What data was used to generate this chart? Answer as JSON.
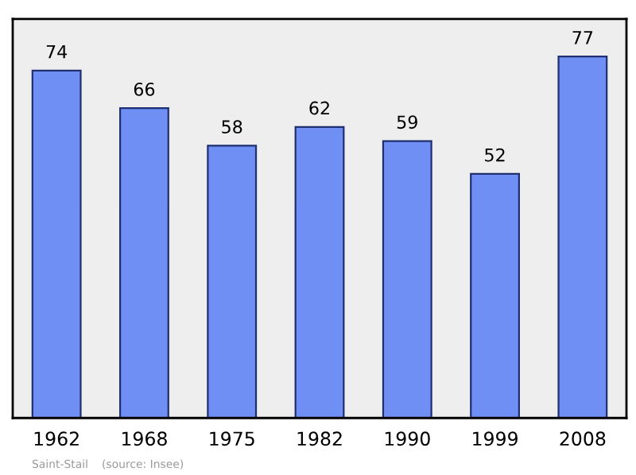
{
  "chart_data": {
    "type": "bar",
    "categories": [
      "1962",
      "1968",
      "1975",
      "1982",
      "1990",
      "1999",
      "2008"
    ],
    "values": [
      74,
      66,
      58,
      62,
      59,
      52,
      77
    ],
    "color": "#6f8ff5",
    "ylim": [
      0,
      85
    ],
    "data_labels": true,
    "grid": false,
    "annotations": [
      "Saint-Stail",
      "(source: Insee)"
    ]
  }
}
